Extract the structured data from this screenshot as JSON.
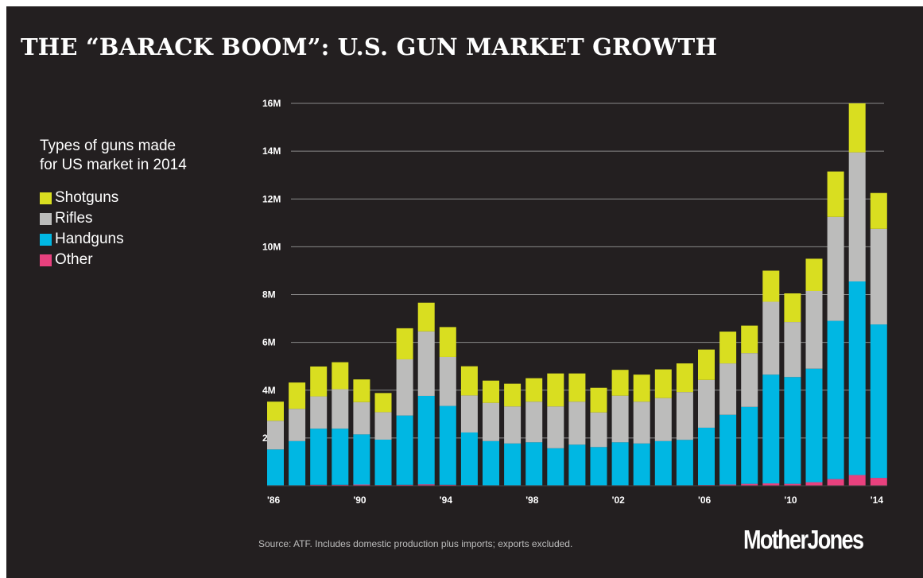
{
  "title": "THE “BARACK BOOM”: U.S. GUN MARKET GROWTH",
  "legend": {
    "title": "Types of guns made for US market in 2014",
    "items": [
      {
        "label": "Shotguns",
        "color": "#d9de20"
      },
      {
        "label": "Rifles",
        "color": "#bcbcbb"
      },
      {
        "label": "Handguns",
        "color": "#00b7e3"
      },
      {
        "label": "Other",
        "color": "#e8417e"
      }
    ]
  },
  "source": "Source: ATF. Includes domestic production plus imports; exports excluded.",
  "logo": "MotherJones",
  "chart_data": {
    "type": "bar",
    "stacked": true,
    "ylim": [
      0,
      16000000
    ],
    "yticks": [
      2000000,
      4000000,
      6000000,
      8000000,
      10000000,
      12000000,
      14000000,
      16000000
    ],
    "ytick_labels": [
      "2M",
      "4M",
      "6M",
      "8M",
      "10M",
      "12M",
      "14M",
      "16M"
    ],
    "grid": true,
    "categories": [
      "1986",
      "1987",
      "1988",
      "1989",
      "1990",
      "1991",
      "1992",
      "1993",
      "1994",
      "1995",
      "1996",
      "1997",
      "1998",
      "1999",
      "2000",
      "2001",
      "2002",
      "2003",
      "2004",
      "2005",
      "2006",
      "2007",
      "2008",
      "2009",
      "2010",
      "2011",
      "2012",
      "2013",
      "2014"
    ],
    "xtick_labels": [
      "'86",
      "",
      "",
      "",
      "'90",
      "",
      "",
      "",
      "'94",
      "",
      "",
      "",
      "'98",
      "",
      "",
      "",
      "'02",
      "",
      "",
      "",
      "'06",
      "",
      "",
      "",
      "'10",
      "",
      "",
      "",
      "'14"
    ],
    "series": [
      {
        "name": "Other",
        "color": "#e8417e",
        "values": [
          0.02,
          0.02,
          0.04,
          0.04,
          0.05,
          0.03,
          0.04,
          0.06,
          0.04,
          0.03,
          0.02,
          0.02,
          0.02,
          0.02,
          0.02,
          0.02,
          0.02,
          0.02,
          0.02,
          0.02,
          0.03,
          0.05,
          0.08,
          0.1,
          0.08,
          0.15,
          0.28,
          0.45,
          0.33
        ]
      },
      {
        "name": "Handguns",
        "color": "#00b7e3",
        "values": [
          1.5,
          1.85,
          2.35,
          2.35,
          2.1,
          1.9,
          2.9,
          3.7,
          3.3,
          2.2,
          1.85,
          1.75,
          1.8,
          1.55,
          1.7,
          1.6,
          1.8,
          1.75,
          1.85,
          1.9,
          2.4,
          2.92,
          3.22,
          4.55,
          4.47,
          4.75,
          6.62,
          8.1,
          6.42
        ]
      },
      {
        "name": "Rifles",
        "color": "#bcbcbb",
        "values": [
          1.2,
          1.35,
          1.35,
          1.65,
          1.35,
          1.15,
          2.35,
          2.7,
          2.05,
          1.55,
          1.6,
          1.55,
          1.7,
          1.75,
          1.8,
          1.45,
          1.95,
          1.75,
          1.8,
          2.0,
          2.0,
          2.15,
          2.25,
          3.05,
          2.3,
          3.25,
          4.35,
          5.4,
          4.0
        ]
      },
      {
        "name": "Shotguns",
        "color": "#d9de20",
        "values": [
          0.8,
          1.1,
          1.25,
          1.13,
          0.95,
          0.8,
          1.3,
          1.2,
          1.25,
          1.22,
          0.93,
          0.95,
          0.98,
          1.38,
          1.18,
          1.03,
          1.08,
          1.13,
          1.2,
          1.2,
          1.27,
          1.33,
          1.15,
          1.3,
          1.2,
          1.35,
          1.9,
          2.05,
          1.5
        ]
      }
    ],
    "value_unit": "millions"
  }
}
